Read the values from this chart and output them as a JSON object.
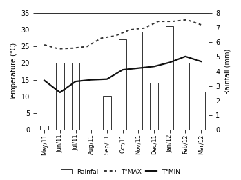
{
  "months": [
    "May/11",
    "Jun/11",
    "Jul/11",
    "Aug/11",
    "Sep/11",
    "Oct/11",
    "Nov/11",
    "Dec/11",
    "Jan/12",
    "Feb/12",
    "Mar/12"
  ],
  "rainfall": [
    0.3,
    4.6,
    4.6,
    0,
    2.3,
    6.2,
    6.7,
    3.2,
    7.1,
    4.6,
    2.6
  ],
  "tmax": [
    25.5,
    24.3,
    24.5,
    25.0,
    27.5,
    28.2,
    30.0,
    30.5,
    32.5,
    32.5,
    33.0,
    31.5
  ],
  "tmin": [
    14.8,
    11.2,
    14.5,
    15.0,
    15.2,
    18.0,
    18.5,
    19.0,
    20.2,
    22.0,
    20.5
  ],
  "tmax_npts": 12,
  "tmin_npts": 11,
  "ylabel_left": "Temperature (°C)",
  "ylabel_right": "Rainfall (mm)",
  "ylim_left": [
    0,
    35
  ],
  "ylim_right": [
    0,
    8
  ],
  "yticks_left": [
    0,
    5,
    10,
    15,
    20,
    25,
    30,
    35
  ],
  "yticks_right": [
    0,
    1,
    2,
    3,
    4,
    5,
    6,
    7,
    8
  ],
  "bar_facecolor": "#ffffff",
  "bar_edgecolor": "#333333",
  "tmax_color": "#333333",
  "tmin_color": "#111111",
  "legend_labels": [
    "Rainfall",
    "T°MAX",
    "T°MIN"
  ],
  "background_color": "#ffffff"
}
